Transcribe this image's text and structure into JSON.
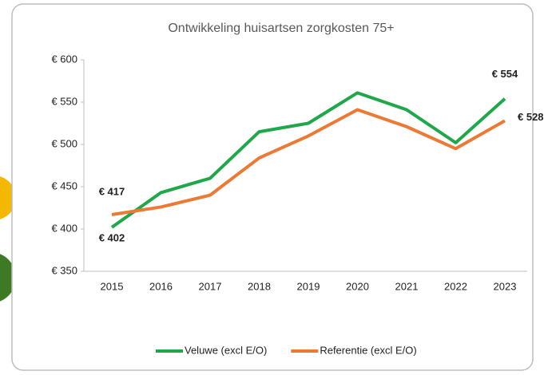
{
  "chart_data": {
    "type": "line",
    "title": "Ontwikkeling huisartsen zorgkosten 75+",
    "categories": [
      "2015",
      "2016",
      "2017",
      "2018",
      "2019",
      "2020",
      "2021",
      "2022",
      "2023"
    ],
    "series": [
      {
        "name": "Veluwe (excl E/O)",
        "color": "#1fa84a",
        "values": [
          402,
          443,
          460,
          515,
          525,
          561,
          541,
          502,
          554
        ],
        "value_labels": [
          "€ 402",
          null,
          null,
          null,
          null,
          null,
          null,
          null,
          "€ 554"
        ]
      },
      {
        "name": "Referentie (excl E/O)",
        "color": "#ec7a35",
        "values": [
          417,
          426,
          440,
          484,
          510,
          541,
          521,
          495,
          528
        ],
        "value_labels": [
          "€ 417",
          null,
          null,
          null,
          null,
          null,
          null,
          null,
          "€ 528"
        ]
      }
    ],
    "ylim": [
      350,
      600
    ],
    "yticks": [
      {
        "value": 350,
        "label": "€ 350"
      },
      {
        "value": 400,
        "label": "€ 400"
      },
      {
        "value": 450,
        "label": "€ 450"
      },
      {
        "value": 500,
        "label": "€ 500"
      },
      {
        "value": 550,
        "label": "€ 550"
      },
      {
        "value": 600,
        "label": "€ 600"
      }
    ],
    "legend": "bottom"
  }
}
